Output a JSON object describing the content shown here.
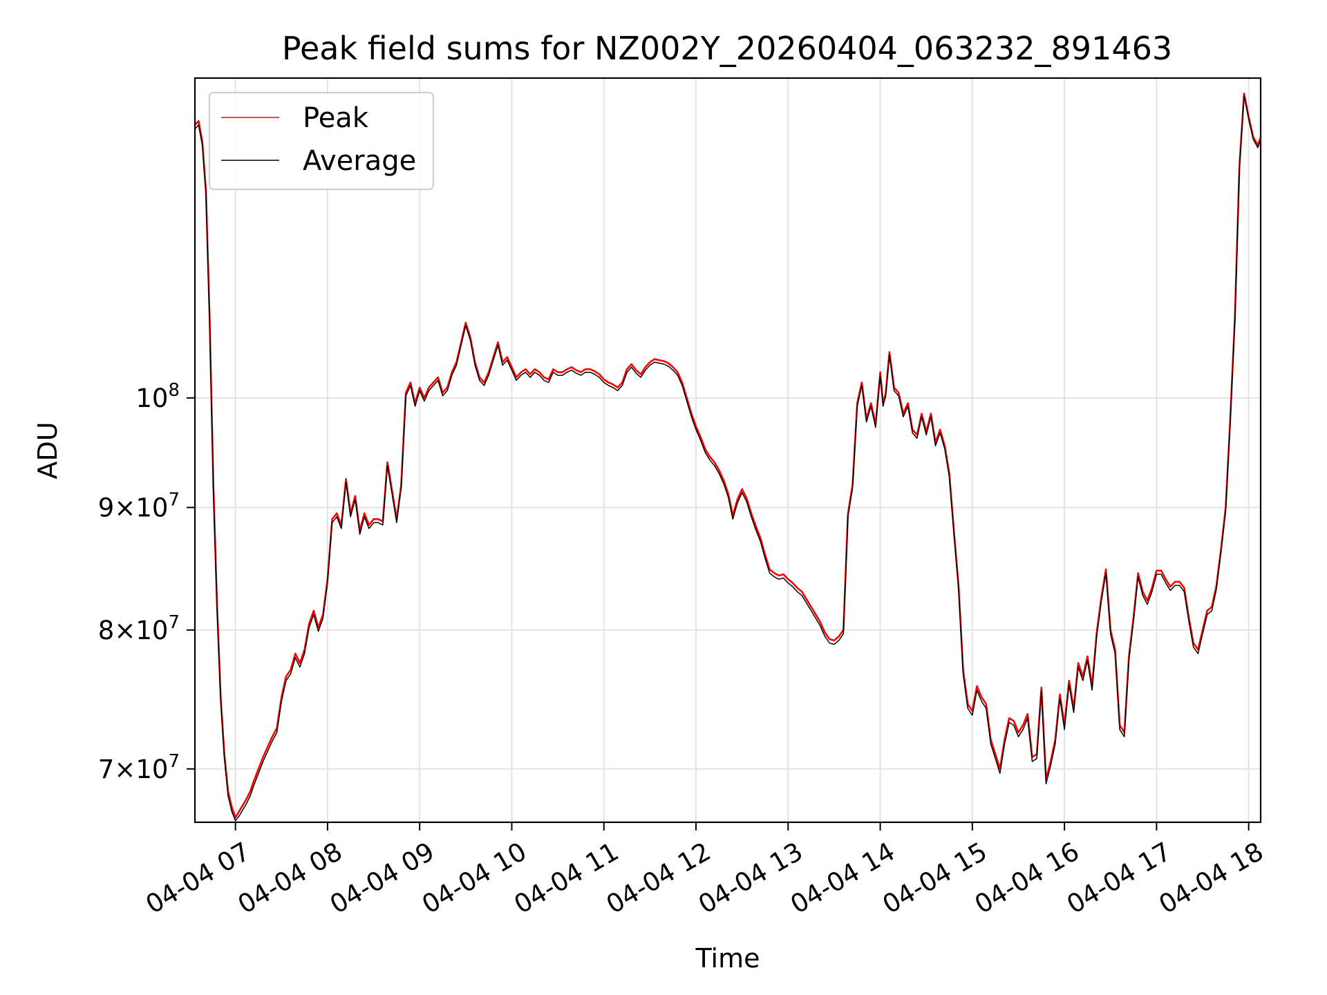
{
  "chart_data": {
    "type": "line",
    "title": "Peak field sums for NZ002Y_20260404_063232_891463",
    "xlabel": "Time",
    "ylabel": "ADU",
    "yscale": "log",
    "xlim": [
      6.56,
      18.13
    ],
    "ylim": [
      66500000,
      136000000
    ],
    "grid": true,
    "legend_position": "top-left",
    "x_tick_labels": [
      "04-04 07",
      "04-04 08",
      "04-04 09",
      "04-04 10",
      "04-04 11",
      "04-04 12",
      "04-04 13",
      "04-04 14",
      "04-04 15",
      "04-04 16",
      "04-04 17",
      "04-04 18"
    ],
    "x_tick_values": [
      7,
      8,
      9,
      10,
      11,
      12,
      13,
      14,
      15,
      16,
      17,
      18
    ],
    "y_ticks": [
      {
        "value": 70000000,
        "mantissa": "7",
        "base": "10",
        "exp": "7"
      },
      {
        "value": 80000000,
        "mantissa": "8",
        "base": "10",
        "exp": "7"
      },
      {
        "value": 90000000,
        "mantissa": "9",
        "base": "10",
        "exp": "7"
      },
      {
        "value": 100000000,
        "mantissa": "",
        "base": "10",
        "exp": "8"
      }
    ],
    "series": [
      {
        "name": "Peak",
        "color": "#ff0000",
        "x": [
          6.56,
          6.6,
          6.64,
          6.68,
          6.72,
          6.76,
          6.8,
          6.84,
          6.88,
          6.92,
          6.96,
          7.0,
          7.04,
          7.08,
          7.12,
          7.16,
          7.2,
          7.25,
          7.3,
          7.35,
          7.4,
          7.45,
          7.5,
          7.55,
          7.6,
          7.65,
          7.7,
          7.75,
          7.8,
          7.85,
          7.9,
          7.95,
          8.0,
          8.05,
          8.1,
          8.15,
          8.2,
          8.25,
          8.3,
          8.35,
          8.4,
          8.45,
          8.5,
          8.55,
          8.6,
          8.65,
          8.7,
          8.75,
          8.8,
          8.85,
          8.9,
          8.95,
          9.0,
          9.05,
          9.1,
          9.15,
          9.2,
          9.25,
          9.3,
          9.35,
          9.4,
          9.45,
          9.5,
          9.55,
          9.6,
          9.65,
          9.7,
          9.75,
          9.8,
          9.85,
          9.9,
          9.95,
          10.0,
          10.05,
          10.1,
          10.15,
          10.2,
          10.25,
          10.3,
          10.35,
          10.4,
          10.45,
          10.5,
          10.55,
          10.6,
          10.65,
          10.7,
          10.75,
          10.8,
          10.85,
          10.9,
          10.95,
          11.0,
          11.05,
          11.1,
          11.15,
          11.2,
          11.25,
          11.3,
          11.35,
          11.4,
          11.45,
          11.5,
          11.55,
          11.6,
          11.65,
          11.7,
          11.75,
          11.8,
          11.85,
          11.9,
          11.95,
          12.0,
          12.05,
          12.1,
          12.15,
          12.2,
          12.25,
          12.3,
          12.35,
          12.4,
          12.45,
          12.5,
          12.55,
          12.6,
          12.65,
          12.7,
          12.75,
          12.8,
          12.85,
          12.9,
          12.95,
          13.0,
          13.05,
          13.1,
          13.15,
          13.2,
          13.25,
          13.3,
          13.35,
          13.4,
          13.45,
          13.5,
          13.55,
          13.6,
          13.65,
          13.7,
          13.75,
          13.8,
          13.85,
          13.9,
          13.95,
          14.0,
          14.03,
          14.06,
          14.1,
          14.15,
          14.2,
          14.25,
          14.3,
          14.35,
          14.4,
          14.45,
          14.5,
          14.55,
          14.6,
          14.65,
          14.7,
          14.75,
          14.8,
          14.85,
          14.9,
          14.95,
          15.0,
          15.05,
          15.1,
          15.15,
          15.2,
          15.25,
          15.3,
          15.35,
          15.4,
          15.45,
          15.5,
          15.55,
          15.6,
          15.65,
          15.7,
          15.75,
          15.8,
          15.85,
          15.9,
          15.95,
          16.0,
          16.05,
          16.1,
          16.15,
          16.2,
          16.25,
          16.3,
          16.35,
          16.4,
          16.45,
          16.5,
          16.55,
          16.6,
          16.65,
          16.7,
          16.75,
          16.8,
          16.85,
          16.9,
          16.95,
          17.0,
          17.05,
          17.1,
          17.15,
          17.2,
          17.25,
          17.3,
          17.35,
          17.4,
          17.45,
          17.5,
          17.55,
          17.6,
          17.65,
          17.7,
          17.75,
          17.8,
          17.85,
          17.9,
          17.95,
          18.0,
          18.05,
          18.1,
          18.13
        ],
        "y": [
          130000000,
          130500000,
          128000000,
          122000000,
          108000000,
          92000000,
          82000000,
          75000000,
          71000000,
          68500000,
          67500000,
          66800000,
          67200000,
          67600000,
          68000000,
          68500000,
          69200000,
          70000000,
          70800000,
          71500000,
          72200000,
          72800000,
          75000000,
          76500000,
          77000000,
          78200000,
          77500000,
          78500000,
          80500000,
          81500000,
          80200000,
          81200000,
          84000000,
          89000000,
          89500000,
          88500000,
          92500000,
          89500000,
          91000000,
          88000000,
          89500000,
          88500000,
          89000000,
          89000000,
          88800000,
          94000000,
          91500000,
          89000000,
          92000000,
          100500000,
          101500000,
          99500000,
          101000000,
          100000000,
          101000000,
          101500000,
          102000000,
          100500000,
          101000000,
          102500000,
          103500000,
          105500000,
          107500000,
          106000000,
          103500000,
          102000000,
          101500000,
          102500000,
          104000000,
          105500000,
          103500000,
          104000000,
          103000000,
          102000000,
          102500000,
          102800000,
          102300000,
          102800000,
          102500000,
          102000000,
          101800000,
          102800000,
          102500000,
          102500000,
          102800000,
          103000000,
          102700000,
          102500000,
          102800000,
          102800000,
          102600000,
          102300000,
          101800000,
          101500000,
          101300000,
          101000000,
          101500000,
          102800000,
          103300000,
          102700000,
          102300000,
          103000000,
          103500000,
          103800000,
          103700000,
          103600000,
          103400000,
          103000000,
          102500000,
          101500000,
          100000000,
          98500000,
          97300000,
          96300000,
          95200000,
          94500000,
          94000000,
          93300000,
          92400000,
          91200000,
          89300000,
          90700000,
          91600000,
          90800000,
          89500000,
          88400000,
          87400000,
          86000000,
          84800000,
          84500000,
          84300000,
          84400000,
          84000000,
          83700000,
          83300000,
          83000000,
          82400000,
          81800000,
          81200000,
          80600000,
          79800000,
          79300000,
          79200000,
          79500000,
          80000000,
          89500000,
          92000000,
          99500000,
          101500000,
          98000000,
          99500000,
          97500000,
          102500000,
          99500000,
          100500000,
          104500000,
          101000000,
          100500000,
          98500000,
          99500000,
          97000000,
          96500000,
          98500000,
          96800000,
          98500000,
          95800000,
          97000000,
          95500000,
          93000000,
          88000000,
          83500000,
          77000000,
          74500000,
          74000000,
          75800000,
          75000000,
          74500000,
          72000000,
          71000000,
          70000000,
          72000000,
          73500000,
          73300000,
          72500000,
          73000000,
          73800000,
          70800000,
          71000000,
          75700000,
          69300000,
          70500000,
          72000000,
          75200000,
          73000000,
          76200000,
          74200000,
          77500000,
          76500000,
          78000000,
          75800000,
          79800000,
          82500000,
          84800000,
          80000000,
          78500000,
          73000000,
          72500000,
          78000000,
          81000000,
          84500000,
          83000000,
          82300000,
          83300000,
          84700000,
          84700000,
          84000000,
          83400000,
          83800000,
          83800000,
          83300000,
          81000000,
          79000000,
          78500000,
          80000000,
          81500000,
          81800000,
          83500000,
          86500000,
          90000000,
          98000000,
          108000000,
          125000000,
          134000000,
          131000000,
          128500000,
          127500000,
          128500000
        ]
      },
      {
        "name": "Average",
        "color": "#000000",
        "x": [
          6.56,
          6.6,
          6.64,
          6.68,
          6.72,
          6.76,
          6.8,
          6.84,
          6.88,
          6.92,
          6.96,
          7.0,
          7.04,
          7.08,
          7.12,
          7.16,
          7.2,
          7.25,
          7.3,
          7.35,
          7.4,
          7.45,
          7.5,
          7.55,
          7.6,
          7.65,
          7.7,
          7.75,
          7.8,
          7.85,
          7.9,
          7.95,
          8.0,
          8.05,
          8.1,
          8.15,
          8.2,
          8.25,
          8.3,
          8.35,
          8.4,
          8.45,
          8.5,
          8.55,
          8.6,
          8.65,
          8.7,
          8.75,
          8.8,
          8.85,
          8.9,
          8.95,
          9.0,
          9.05,
          9.1,
          9.15,
          9.2,
          9.25,
          9.3,
          9.35,
          9.4,
          9.45,
          9.5,
          9.55,
          9.6,
          9.65,
          9.7,
          9.75,
          9.8,
          9.85,
          9.9,
          9.95,
          10.0,
          10.05,
          10.1,
          10.15,
          10.2,
          10.25,
          10.3,
          10.35,
          10.4,
          10.45,
          10.5,
          10.55,
          10.6,
          10.65,
          10.7,
          10.75,
          10.8,
          10.85,
          10.9,
          10.95,
          11.0,
          11.05,
          11.1,
          11.15,
          11.2,
          11.25,
          11.3,
          11.35,
          11.4,
          11.45,
          11.5,
          11.55,
          11.6,
          11.65,
          11.7,
          11.75,
          11.8,
          11.85,
          11.9,
          11.95,
          12.0,
          12.05,
          12.1,
          12.15,
          12.2,
          12.25,
          12.3,
          12.35,
          12.4,
          12.45,
          12.5,
          12.55,
          12.6,
          12.65,
          12.7,
          12.75,
          12.8,
          12.85,
          12.9,
          12.95,
          13.0,
          13.05,
          13.1,
          13.15,
          13.2,
          13.25,
          13.3,
          13.35,
          13.4,
          13.45,
          13.5,
          13.55,
          13.6,
          13.65,
          13.7,
          13.75,
          13.8,
          13.85,
          13.9,
          13.95,
          14.0,
          14.03,
          14.06,
          14.1,
          14.15,
          14.2,
          14.25,
          14.3,
          14.35,
          14.4,
          14.45,
          14.5,
          14.55,
          14.6,
          14.65,
          14.7,
          14.75,
          14.8,
          14.85,
          14.9,
          14.95,
          15.0,
          15.05,
          15.1,
          15.15,
          15.2,
          15.25,
          15.3,
          15.35,
          15.4,
          15.45,
          15.5,
          15.55,
          15.6,
          15.65,
          15.7,
          15.75,
          15.8,
          15.85,
          15.9,
          15.95,
          16.0,
          16.05,
          16.1,
          16.15,
          16.2,
          16.25,
          16.3,
          16.35,
          16.4,
          16.45,
          16.5,
          16.55,
          16.6,
          16.65,
          16.7,
          16.75,
          16.8,
          16.85,
          16.9,
          16.95,
          17.0,
          17.05,
          17.1,
          17.15,
          17.2,
          17.25,
          17.3,
          17.35,
          17.4,
          17.45,
          17.5,
          17.55,
          17.6,
          17.65,
          17.7,
          17.75,
          17.8,
          17.85,
          17.9,
          17.95,
          18.0,
          18.05,
          18.1,
          18.13
        ],
        "y": [
          129500000,
          130000000,
          127500000,
          121500000,
          107500000,
          91500000,
          81600000,
          74700000,
          70700000,
          68200000,
          67200000,
          66600000,
          66900000,
          67300000,
          67700000,
          68200000,
          68900000,
          69700000,
          70500000,
          71200000,
          71900000,
          72500000,
          74700000,
          76200000,
          76700000,
          77900000,
          77200000,
          78200000,
          80200000,
          81200000,
          79900000,
          80900000,
          83700000,
          88700000,
          89200000,
          88200000,
          92200000,
          89200000,
          90700000,
          87700000,
          89200000,
          88200000,
          88700000,
          88700000,
          88500000,
          93700000,
          91200000,
          88700000,
          91700000,
          100200000,
          101200000,
          99200000,
          100700000,
          99700000,
          100700000,
          101200000,
          101700000,
          100200000,
          100700000,
          102200000,
          103200000,
          105200000,
          107200000,
          105700000,
          103200000,
          101700000,
          101200000,
          102200000,
          103700000,
          105200000,
          103200000,
          103700000,
          102700000,
          101700000,
          102200000,
          102500000,
          102000000,
          102500000,
          102200000,
          101700000,
          101500000,
          102500000,
          102200000,
          102200000,
          102500000,
          102700000,
          102400000,
          102200000,
          102500000,
          102500000,
          102300000,
          102000000,
          101500000,
          101200000,
          101000000,
          100700000,
          101200000,
          102500000,
          103000000,
          102400000,
          102000000,
          102700000,
          103200000,
          103500000,
          103400000,
          103300000,
          103100000,
          102700000,
          102200000,
          101200000,
          99700000,
          98200000,
          97000000,
          96000000,
          94900000,
          94200000,
          93700000,
          93000000,
          92100000,
          90900000,
          89000000,
          90400000,
          91300000,
          90500000,
          89200000,
          88100000,
          87100000,
          85700000,
          84500000,
          84200000,
          84000000,
          84100000,
          83700000,
          83400000,
          83000000,
          82700000,
          82100000,
          81500000,
          80900000,
          80300000,
          79500000,
          79000000,
          78900000,
          79200000,
          79700000,
          89200000,
          91700000,
          99200000,
          101200000,
          97700000,
          99200000,
          97200000,
          102200000,
          99200000,
          100200000,
          104200000,
          100700000,
          100200000,
          98200000,
          99200000,
          96700000,
          96200000,
          98200000,
          96500000,
          98200000,
          95500000,
          96700000,
          95200000,
          92700000,
          87700000,
          83200000,
          76700000,
          74200000,
          73700000,
          75500000,
          74700000,
          74200000,
          71700000,
          70700000,
          69700000,
          71700000,
          73200000,
          73000000,
          72200000,
          72700000,
          73500000,
          70500000,
          70700000,
          75400000,
          69000000,
          70200000,
          71700000,
          74900000,
          72700000,
          75900000,
          73900000,
          77200000,
          76200000,
          77700000,
          75500000,
          79500000,
          82200000,
          84500000,
          79700000,
          78200000,
          72700000,
          72200000,
          77700000,
          80700000,
          84200000,
          82700000,
          82000000,
          83000000,
          84400000,
          84400000,
          83700000,
          83100000,
          83500000,
          83500000,
          83000000,
          80700000,
          78700000,
          78200000,
          79700000,
          81200000,
          81500000,
          83200000,
          86200000,
          89700000,
          97700000,
          107700000,
          124700000,
          133700000,
          130700000,
          128200000,
          127200000,
          128200000
        ]
      }
    ]
  }
}
